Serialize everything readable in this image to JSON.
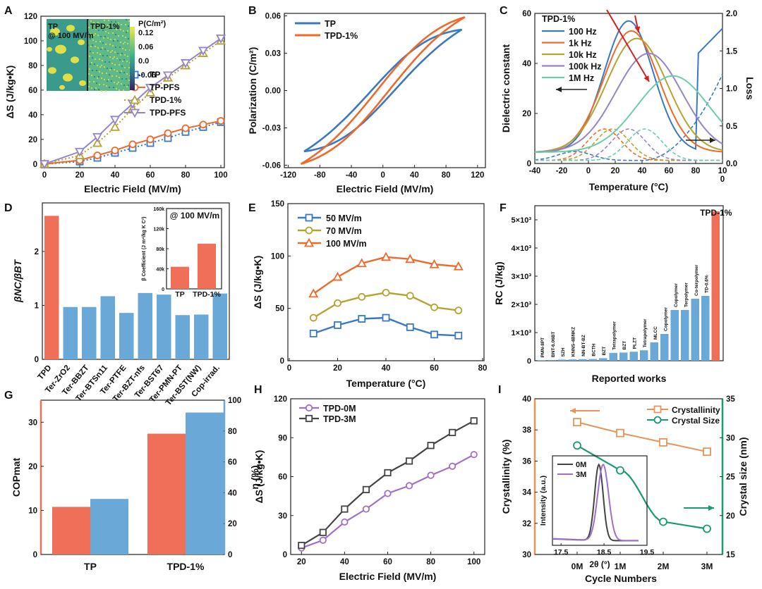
{
  "colors": {
    "blue": "#3b78c4",
    "orange": "#ef6a2a",
    "olive": "#b5a332",
    "lavender": "#9585c8",
    "c100": "#3b78c4",
    "c1k": "#ef6a2a",
    "c10k": "#b5a332",
    "c100k": "#9585c8",
    "c1M": "#6fccaa",
    "barRed": "#ef6f59",
    "barBlue": "#6aa8d8",
    "teal": "#1a9976",
    "salmon": "#e8935a",
    "purple": "#a070c8",
    "dark": "#444444",
    "arrowRed": "#d42020"
  },
  "chart_data": [
    {
      "panel": "A",
      "type": "line",
      "xlabel": "Electric Field (MV/m)",
      "ylabel": "ΔS (J/kg•K)",
      "xlim": [
        0,
        100
      ],
      "ylim": [
        -3,
        120
      ],
      "xticks": [
        "0",
        "20",
        "40",
        "60",
        "80",
        "100"
      ],
      "yticks": [
        "0",
        "20",
        "40",
        "60",
        "80",
        "100",
        "120"
      ],
      "series": [
        {
          "name": "TP",
          "x": [
            0,
            20,
            30,
            40,
            50,
            60,
            70,
            80,
            90,
            100
          ],
          "values": [
            0,
            2,
            5,
            9,
            13,
            17,
            21,
            26,
            30,
            34
          ]
        },
        {
          "name": "TP-PFS",
          "x": [
            0,
            20,
            30,
            40,
            50,
            60,
            70,
            80,
            90,
            100
          ],
          "values": [
            0,
            3,
            7,
            11,
            16,
            20,
            25,
            29,
            32,
            35
          ]
        },
        {
          "name": "TPD-1%",
          "x": [
            0,
            20,
            30,
            40,
            50,
            60,
            70,
            80,
            90,
            100
          ],
          "values": [
            0,
            7,
            17,
            30,
            45,
            58,
            70,
            80,
            90,
            100
          ]
        },
        {
          "name": "TPD-PFS",
          "x": [
            0,
            20,
            30,
            40,
            50,
            60,
            70,
            80,
            90,
            100
          ],
          "values": [
            0,
            10,
            22,
            36,
            49,
            62,
            72,
            82,
            92,
            102
          ]
        }
      ],
      "inset": {
        "left_label": "TP",
        "left_sub": "@ 100 MV/m",
        "right_label": "TPD-1%",
        "cbar_title": "P(C/m²)",
        "cbar_ticks": [
          "0.12",
          "0.06",
          "0.0",
          "-0.06"
        ]
      }
    },
    {
      "panel": "B",
      "type": "line",
      "xlabel": "Electric Field (MV/m)",
      "ylabel": "Polarization (C/m²)",
      "xlim": [
        -120,
        120
      ],
      "ylim": [
        -0.06,
        0.06
      ],
      "xticks": [
        "-120",
        "-80",
        "-40",
        "0",
        "40",
        "80",
        "120"
      ],
      "yticks": [
        "-0.06",
        "-0.03",
        "0.00",
        "0.03",
        "0.06"
      ],
      "series": [
        {
          "name": "TP"
        },
        {
          "name": "TPD-1%"
        }
      ]
    },
    {
      "panel": "C",
      "type": "line",
      "legend_title": "TPD-1%",
      "xlabel": "Temperature (°C)",
      "ylabel": "Dielectric constant",
      "y2label": "Loss",
      "xlim": [
        -40,
        100
      ],
      "ylim": [
        0,
        60
      ],
      "y2lim": [
        0,
        2.0
      ],
      "xticks": [
        "-40",
        "-20",
        "0",
        "20",
        "40",
        "60",
        "80",
        "10\n0"
      ],
      "yticks": [
        "0",
        "20",
        "40",
        "60"
      ],
      "y2ticks": [
        "0.0",
        "0.5",
        "1.0",
        "1.5",
        "2.0"
      ],
      "series": [
        {
          "name": "100 Hz",
          "peak_T": 30,
          "peak": 57
        },
        {
          "name": "1k Hz",
          "peak_T": 32,
          "peak": 53
        },
        {
          "name": "10k Hz",
          "peak_T": 36,
          "peak": 50
        },
        {
          "name": "100k Hz",
          "peak_T": 45,
          "peak": 44
        },
        {
          "name": "1M Hz",
          "peak_T": 63,
          "peak": 35
        }
      ]
    },
    {
      "panel": "D",
      "type": "bar",
      "ylabel": "βNC/βBT",
      "ylim": [
        0,
        2.9
      ],
      "yticks": [
        "0",
        "1",
        "2"
      ],
      "categories": [
        "TPD",
        "Ter-ZrO2",
        "Ter-BBZT",
        "Ter-BTSn11",
        "Ter-PTFE",
        "Ter-BZT-nfs",
        "Ter-BST67",
        "Ter-PMN-PT",
        "Ter-BST(NW)",
        "Cop-irrad."
      ],
      "values": [
        2.66,
        0.97,
        0.97,
        1.17,
        0.86,
        1.23,
        1.2,
        0.82,
        0.83,
        1.22
      ],
      "inset": {
        "title": "@ 100 MV/m",
        "ylabel": "β Coefficient (J m⁴/kg K C²)",
        "categories": [
          "TP",
          "TPD-1%"
        ],
        "values": [
          44000,
          90000
        ],
        "yticks": [
          "0",
          "40k",
          "80k",
          "120k",
          "160k"
        ],
        "ylim": [
          0,
          160000
        ]
      }
    },
    {
      "panel": "E",
      "type": "line",
      "xlabel": "Temperature (°C)",
      "ylabel": "ΔS (J/kg•K)",
      "xlim": [
        0,
        80
      ],
      "ylim": [
        0,
        150
      ],
      "xticks": [
        "0",
        "10",
        "20",
        "30",
        "40",
        "50",
        "60",
        "70",
        "80"
      ],
      "yticks": [
        "0",
        "50",
        "100",
        "150"
      ],
      "series": [
        {
          "name": "50 MV/m",
          "x": [
            10,
            20,
            30,
            40,
            50,
            60,
            70
          ],
          "values": [
            26,
            34,
            40,
            41,
            32,
            25,
            24
          ]
        },
        {
          "name": "70 MV/m",
          "x": [
            10,
            20,
            30,
            40,
            50,
            60,
            70
          ],
          "values": [
            41,
            55,
            61,
            65,
            62,
            51,
            48
          ]
        },
        {
          "name": "100 MV/m",
          "x": [
            10,
            20,
            30,
            40,
            50,
            60,
            70
          ],
          "values": [
            64,
            80,
            93,
            99,
            97,
            92,
            90
          ]
        }
      ]
    },
    {
      "panel": "F",
      "type": "bar",
      "xlabel": "Reported works",
      "ylabel": "RC (J/kg)",
      "ylim": [
        0,
        5500
      ],
      "yticks": [
        "0",
        "1×10³",
        "2×10³",
        "3×10³",
        "4×10³",
        "5×10³"
      ],
      "categories": [
        "PMN-8PT",
        "BNT-6.06BT",
        "SZH",
        "KNNS-4BNKZ",
        "NN-BT-BZ",
        "BCTH",
        "BZT",
        "Tetrapolymer",
        "BZT",
        "PLZT",
        "Tetrapolymer",
        "MLCC",
        "Copolymer",
        "Copolymer",
        "Terpolymer",
        "Co-terpolymer",
        "TD-0.6%",
        "TPD-1%"
      ],
      "values": [
        15,
        25,
        40,
        45,
        55,
        60,
        90,
        280,
        290,
        320,
        370,
        650,
        950,
        1800,
        1800,
        2200,
        2300,
        5300
      ]
    },
    {
      "panel": "G",
      "type": "bar",
      "ylabel": "COPmat",
      "y2label": "η (%)",
      "categories": [
        "TP",
        "TPD-1%"
      ],
      "series": [
        {
          "name": "COPmat",
          "values": [
            10.8,
            27.4
          ],
          "ylim": [
            0,
            35
          ],
          "yticks": [
            "0",
            "10",
            "20",
            "30"
          ]
        },
        {
          "name": "η (%)",
          "values": [
            36,
            92
          ],
          "ylim": [
            0,
            100
          ],
          "yticks": [
            "0",
            "20",
            "40",
            "60",
            "80",
            "100"
          ]
        }
      ]
    },
    {
      "panel": "H",
      "type": "line",
      "xlabel": "Electric Field (MV/m)",
      "ylabel": "ΔS (J/kg•K)",
      "xlim": [
        15,
        105
      ],
      "ylim": [
        0,
        120
      ],
      "xticks": [
        "20",
        "40",
        "60",
        "80",
        "100"
      ],
      "yticks": [
        "0",
        "30",
        "60",
        "90",
        "120"
      ],
      "series": [
        {
          "name": "TPD-0M",
          "x": [
            20,
            30,
            40,
            50,
            60,
            70,
            80,
            90,
            100
          ],
          "values": [
            5,
            11,
            25,
            35,
            47,
            53,
            61,
            68,
            77
          ]
        },
        {
          "name": "TPD-3M",
          "x": [
            20,
            30,
            40,
            50,
            60,
            70,
            80,
            90,
            100
          ],
          "values": [
            7,
            17,
            35,
            50,
            63,
            72,
            84,
            94,
            103
          ]
        }
      ]
    },
    {
      "panel": "I",
      "type": "line",
      "xlabel": "Cycle Numbers",
      "ylabel": "Crystallinity (%)",
      "y2label": "Crystal size (nm)",
      "categories": [
        "0M",
        "1M",
        "2M",
        "3M"
      ],
      "ylim": [
        30,
        40
      ],
      "yticks": [
        "30",
        "32",
        "34",
        "36",
        "38",
        "40"
      ],
      "y2lim": [
        15,
        35
      ],
      "y2ticks": [
        "15",
        "20",
        "25",
        "30",
        "35"
      ],
      "series": [
        {
          "name": "Crystallinity",
          "values": [
            38.5,
            37.8,
            37.2,
            36.6
          ],
          "axis": "left"
        },
        {
          "name": "Crystal Size",
          "values": [
            29,
            25.8,
            19.2,
            18.3
          ],
          "axis": "right"
        }
      ],
      "inset": {
        "xlabel": "2θ (°)",
        "ylabel": "Intensity (a.u.)",
        "xticks": [
          "17.5",
          "18.5",
          "19.5"
        ],
        "series": [
          "0M",
          "3M"
        ]
      }
    }
  ]
}
